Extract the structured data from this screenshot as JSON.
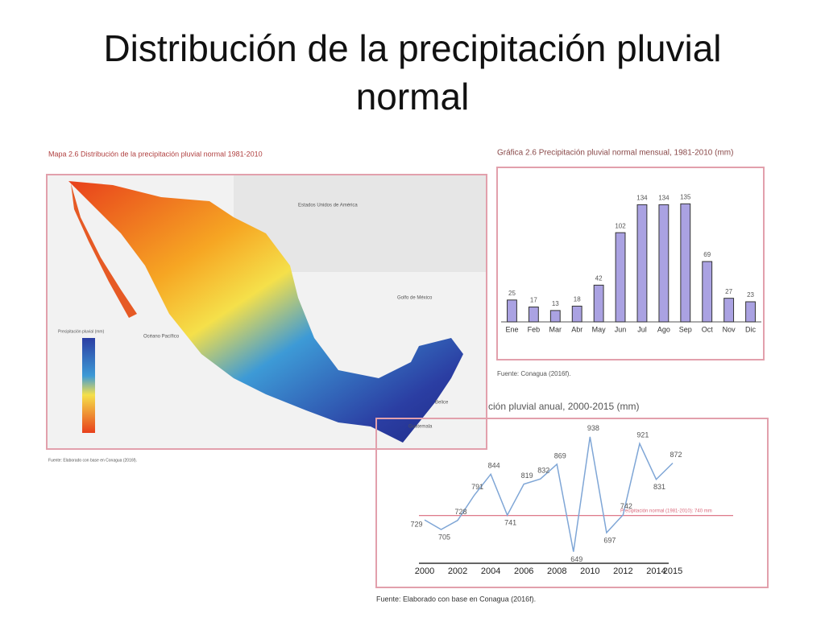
{
  "title": "Distribución de la precipitación pluvial normal",
  "map": {
    "title": "Mapa 2.6 Distribución de la precipitación pluvial normal 1981-2010",
    "labels": [
      "Estados Unidos de América",
      "Golfo de México",
      "Océano Pacífico",
      "Belice",
      "Guatemala"
    ],
    "legend_title": "Precipitación pluvial (mm)",
    "source": "Fuente: Elaborado con base en Conagua (2016f)."
  },
  "chart_data": [
    {
      "type": "bar",
      "title": "Gráfica 2.6 Precipitación pluvial normal mensual, 1981-2010 (mm)",
      "categories": [
        "Ene",
        "Feb",
        "Mar",
        "Abr",
        "May",
        "Jun",
        "Jul",
        "Ago",
        "Sep",
        "Oct",
        "Nov",
        "Dic"
      ],
      "values": [
        25,
        17,
        13,
        18,
        42,
        102,
        134,
        134,
        135,
        69,
        27,
        23
      ],
      "color": "#aaa2e2",
      "ylim": [
        0,
        150
      ],
      "source": "Fuente: Conagua (2016f)."
    },
    {
      "type": "line",
      "title": "ción pluvial anual, 2000-2015 (mm)",
      "x": [
        2000,
        2001,
        2002,
        2003,
        2004,
        2005,
        2006,
        2007,
        2008,
        2009,
        2010,
        2011,
        2012,
        2013,
        2014,
        2015
      ],
      "values": [
        729,
        705,
        728,
        791,
        844,
        741,
        819,
        832,
        869,
        649,
        938,
        697,
        742,
        921,
        831,
        872
      ],
      "color": "#7fa6d6",
      "xlim": [
        2000,
        2015
      ],
      "xticks": [
        2000,
        2002,
        2004,
        2006,
        2008,
        2010,
        2012,
        2014,
        2015
      ],
      "ylim": [
        620,
        960
      ],
      "reference": {
        "value": 740,
        "label": "Precipitación normal (1981-2010): 740 mm",
        "color": "#d9677a"
      },
      "source": "Fuente: Elaborado con base en Conagua (2016f)."
    }
  ]
}
